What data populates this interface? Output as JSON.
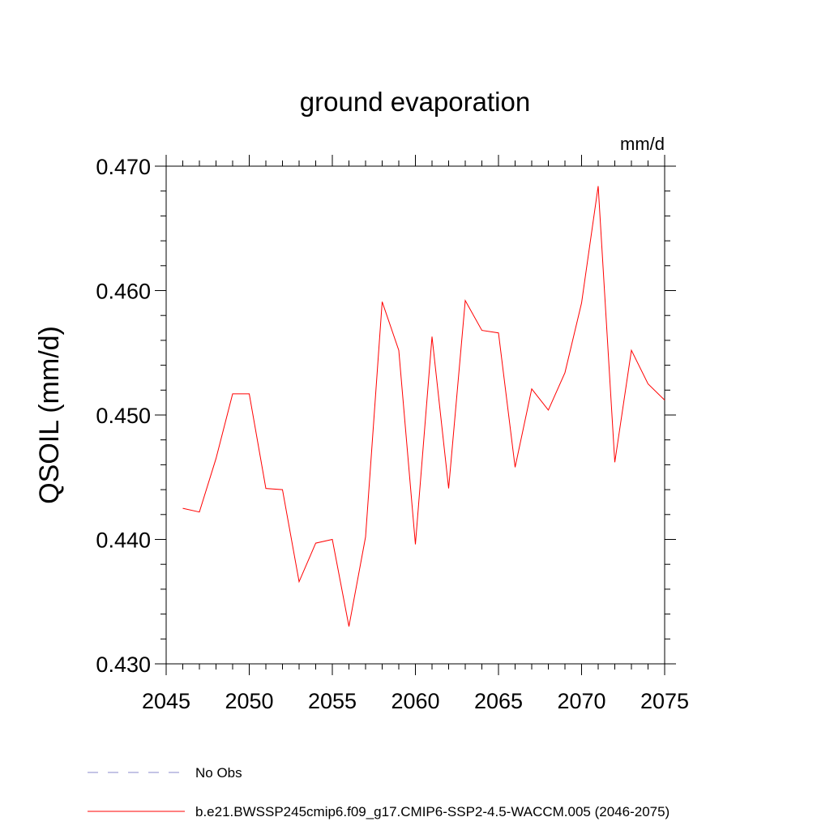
{
  "chart_data": {
    "type": "line",
    "title": "ground evaporation",
    "units_label": "mm/d",
    "ylabel": "QSOIL  (mm/d)",
    "xlabel": "",
    "xlim": [
      2045,
      2075
    ],
    "ylim": [
      0.43,
      0.47
    ],
    "x_ticks": [
      2045,
      2050,
      2055,
      2060,
      2065,
      2070,
      2075
    ],
    "x_tick_labels": [
      "2045",
      "2050",
      "2055",
      "2060",
      "2065",
      "2070",
      "2075"
    ],
    "y_ticks": [
      0.43,
      0.44,
      0.45,
      0.46,
      0.47
    ],
    "y_tick_labels": [
      "0.430",
      "0.440",
      "0.450",
      "0.460",
      "0.470"
    ],
    "grid": false,
    "legend_position": "bottom",
    "series": [
      {
        "name": "b.e21.BWSSP245cmip6.f09_g17.CMIP6-SSP2-4.5-WACCM.005 (2046-2075)",
        "color": "#ff0000",
        "dash": "solid",
        "x": [
          2046,
          2047,
          2048,
          2049,
          2050,
          2051,
          2052,
          2053,
          2054,
          2055,
          2056,
          2057,
          2058,
          2059,
          2060,
          2061,
          2062,
          2063,
          2064,
          2065,
          2066,
          2067,
          2068,
          2069,
          2070,
          2071,
          2072,
          2073,
          2074,
          2075
        ],
        "values": [
          0.4425,
          0.4422,
          0.4465,
          0.4517,
          0.4517,
          0.4441,
          0.444,
          0.4366,
          0.4397,
          0.44,
          0.433,
          0.4402,
          0.4591,
          0.4552,
          0.4396,
          0.4563,
          0.4441,
          0.4592,
          0.4568,
          0.4566,
          0.4458,
          0.4521,
          0.4504,
          0.4534,
          0.459,
          0.4684,
          0.4462,
          0.4552,
          0.4525,
          0.4512
        ]
      }
    ],
    "legend": [
      {
        "label": "No Obs",
        "color": "#8888cc",
        "dash": "dashed"
      },
      {
        "label": "b.e21.BWSSP245cmip6.f09_g17.CMIP6-SSP2-4.5-WACCM.005 (2046-2075)",
        "color": "#ff0000",
        "dash": "solid"
      }
    ]
  }
}
